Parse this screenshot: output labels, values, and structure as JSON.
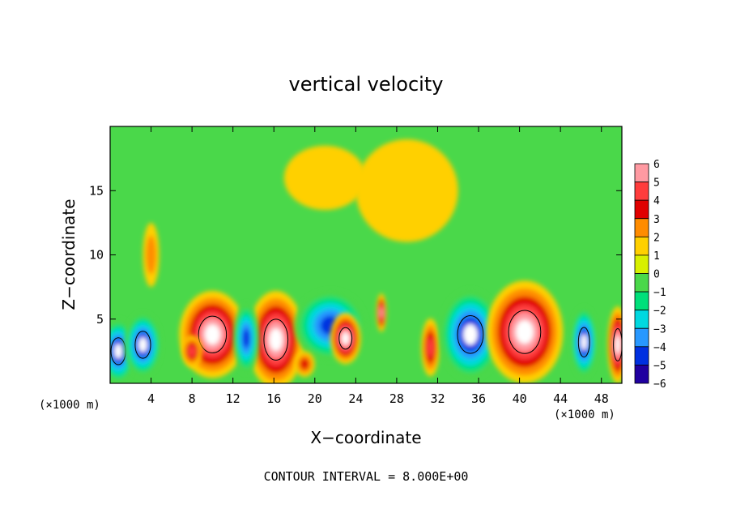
{
  "chart_data": {
    "type": "heatmap",
    "title": "vertical velocity",
    "xlabel": "X−coordinate",
    "ylabel": "Z−coordinate",
    "x_unit_left": "(×1000 m)",
    "x_unit_right": "(×1000 m)",
    "footer": "CONTOUR INTERVAL = 8.000E+00",
    "xlim": [
      0,
      50
    ],
    "ylim": [
      0,
      20
    ],
    "x_ticks": [
      {
        "value": 4,
        "label": "4"
      },
      {
        "value": 8,
        "label": "8"
      },
      {
        "value": 12,
        "label": "12"
      },
      {
        "value": 16,
        "label": "16"
      },
      {
        "value": 20,
        "label": "20"
      },
      {
        "value": 24,
        "label": "24"
      },
      {
        "value": 28,
        "label": "28"
      },
      {
        "value": 32,
        "label": "32"
      },
      {
        "value": 36,
        "label": "36"
      },
      {
        "value": 40,
        "label": "40"
      },
      {
        "value": 44,
        "label": "44"
      },
      {
        "value": 48,
        "label": "48"
      }
    ],
    "y_ticks": [
      {
        "value": 5,
        "label": "5"
      },
      {
        "value": 10,
        "label": "10"
      },
      {
        "value": 15,
        "label": "15"
      }
    ],
    "colorbar": {
      "labels": [
        "6",
        "5",
        "4",
        "3",
        "2",
        "1",
        "0",
        "−1",
        "−2",
        "−3",
        "−4",
        "−5",
        "−6"
      ],
      "colors": [
        "#ff9aa2",
        "#ff3c3c",
        "#e00000",
        "#ff8c00",
        "#ffd000",
        "#d8f000",
        "#4ad84a",
        "#00e07a",
        "#00d8e0",
        "#2898ff",
        "#0030e0",
        "#2000a0"
      ]
    },
    "cells": [
      {
        "x": 0.8,
        "z": 2.5,
        "w": 3.4,
        "h": 5.0,
        "v": -6
      },
      {
        "x": 3.2,
        "z": 3.0,
        "w": 3.6,
        "h": 5.0,
        "v": -6
      },
      {
        "x": 10.0,
        "z": 3.8,
        "w": 6.5,
        "h": 6.8,
        "v": 6
      },
      {
        "x": 16.2,
        "z": 3.4,
        "w": 5.6,
        "h": 7.6,
        "v": 6
      },
      {
        "x": 13.3,
        "z": 3.5,
        "w": 2.5,
        "h": 5.5,
        "v": -5
      },
      {
        "x": 21.5,
        "z": 4.5,
        "w": 7.0,
        "h": 5.5,
        "v": -5
      },
      {
        "x": 23.0,
        "z": 3.5,
        "w": 3.0,
        "h": 4.0,
        "v": 6
      },
      {
        "x": 26.5,
        "z": 5.5,
        "w": 1.0,
        "h": 3.0,
        "v": 5
      },
      {
        "x": 31.3,
        "z": 2.8,
        "w": 1.8,
        "h": 4.5,
        "v": 4
      },
      {
        "x": 35.2,
        "z": 3.8,
        "w": 6.0,
        "h": 7.0,
        "v": -6
      },
      {
        "x": 40.5,
        "z": 4.0,
        "w": 7.5,
        "h": 8.0,
        "v": 6
      },
      {
        "x": 46.3,
        "z": 3.2,
        "w": 2.6,
        "h": 5.5,
        "v": -6
      },
      {
        "x": 49.6,
        "z": 3.0,
        "w": 2.0,
        "h": 6.0,
        "v": 6
      },
      {
        "x": 4.0,
        "z": 10.0,
        "w": 1.6,
        "h": 5.0,
        "v": 2
      },
      {
        "x": 21.0,
        "z": 16.0,
        "w": 8.0,
        "h": 5.0,
        "v": 1
      },
      {
        "x": 29.0,
        "z": 15.0,
        "w": 10.0,
        "h": 8.0,
        "v": 1
      },
      {
        "x": 8.0,
        "z": 2.5,
        "w": 2.0,
        "h": 2.5,
        "v": 4
      },
      {
        "x": 19.0,
        "z": 1.5,
        "w": 2.0,
        "h": 2.0,
        "v": 3
      }
    ]
  }
}
